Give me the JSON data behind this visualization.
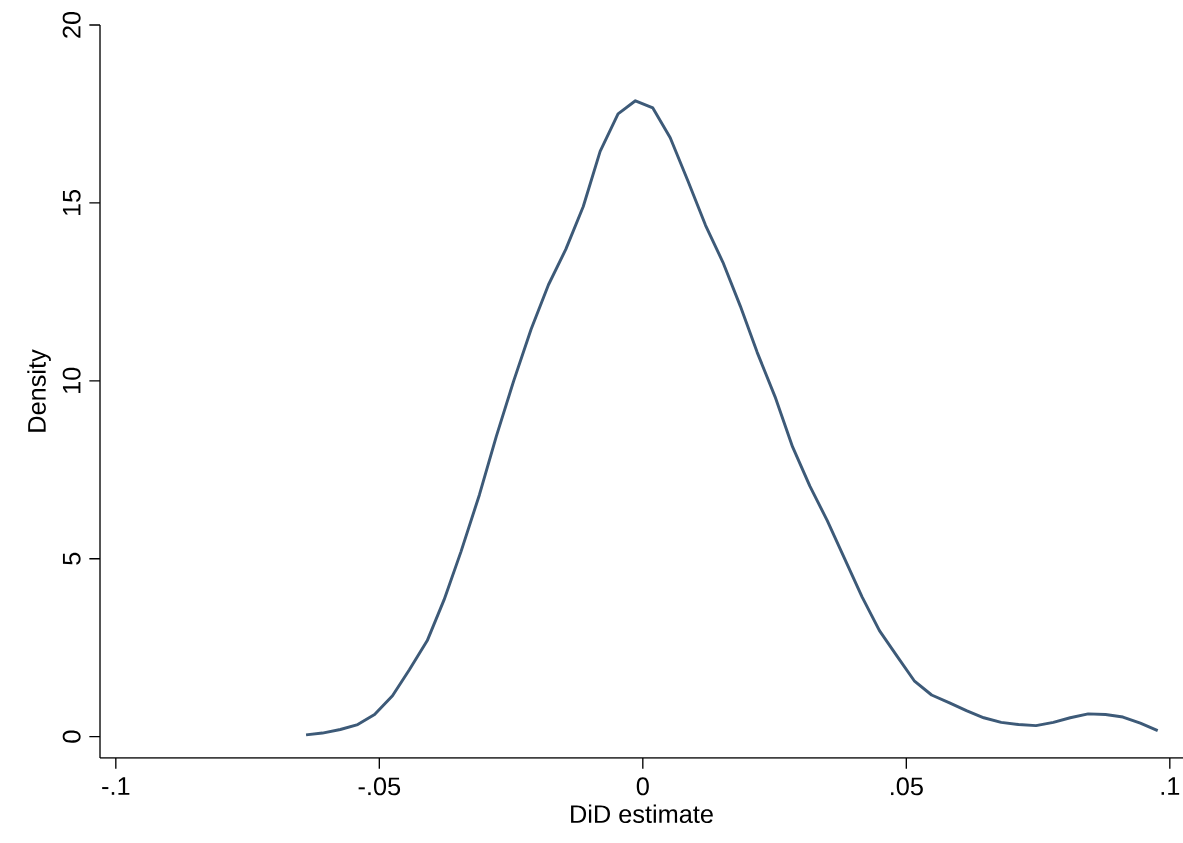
{
  "chart_data": {
    "type": "line",
    "xlabel": "DiD estimate",
    "ylabel": "Density",
    "x": [
      -0.0639,
      -0.0608,
      -0.0574,
      -0.0541,
      -0.0509,
      -0.0475,
      -0.0443,
      -0.0409,
      -0.0377,
      -0.0345,
      -0.031,
      -0.0278,
      -0.0245,
      -0.0212,
      -0.0179,
      -0.0146,
      -0.0113,
      -0.0081,
      -0.0047,
      -0.0014,
      0.0019,
      0.0052,
      0.0086,
      0.0119,
      0.0152,
      0.0185,
      0.0217,
      0.0251,
      0.0284,
      0.0317,
      0.035,
      0.0382,
      0.0416,
      0.0449,
      0.0482,
      0.0515,
      0.0548,
      0.0582,
      0.0614,
      0.0647,
      0.068,
      0.0713,
      0.0746,
      0.0779,
      0.0811,
      0.0845,
      0.0878,
      0.0911,
      0.0944,
      0.0977
    ],
    "series": [
      {
        "color": "#3d5a78",
        "values": [
          0.05,
          0.1,
          0.2,
          0.34,
          0.62,
          1.15,
          1.88,
          2.7,
          3.85,
          5.2,
          6.8,
          8.44,
          10.0,
          11.45,
          12.7,
          13.7,
          14.9,
          16.45,
          17.5,
          17.87,
          17.67,
          16.83,
          15.6,
          14.37,
          13.33,
          12.1,
          10.8,
          9.55,
          8.15,
          7.04,
          6.07,
          5.03,
          3.93,
          2.98,
          2.27,
          1.57,
          1.17,
          0.95,
          0.73,
          0.53,
          0.4,
          0.34,
          0.31,
          0.4,
          0.53,
          0.64,
          0.62,
          0.55,
          0.38,
          0.17
        ]
      }
    ],
    "xlim": [
      -0.103,
      0.1025
    ],
    "ylim": [
      -0.6,
      20
    ],
    "xticks": [
      {
        "value": -0.1,
        "label": "-.1"
      },
      {
        "value": -0.05,
        "label": "-.05"
      },
      {
        "value": 0,
        "label": "0"
      },
      {
        "value": 0.05,
        "label": ".05"
      },
      {
        "value": 0.1,
        "label": ".1"
      }
    ],
    "yticks": [
      0,
      5,
      10,
      15,
      20
    ]
  }
}
